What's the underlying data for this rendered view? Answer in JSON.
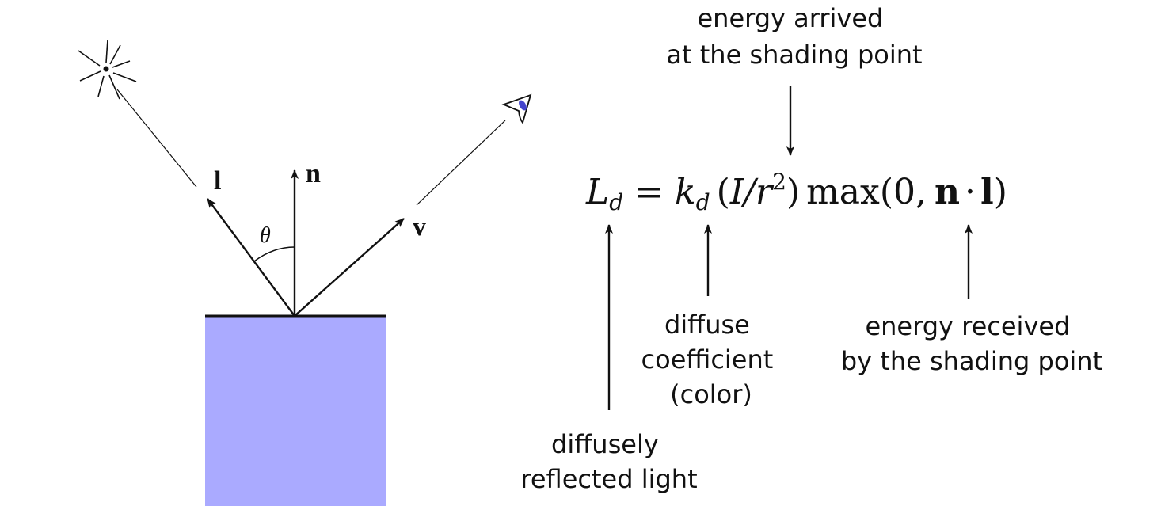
{
  "colors": {
    "surface": "#aaaaff",
    "ink": "#111111",
    "eye_accent": "#4444cc"
  },
  "icons": {
    "light": "light-source-icon",
    "eye": "eye-icon"
  },
  "vectors": {
    "light": "l",
    "normal": "n",
    "view": "v",
    "angle": "θ"
  },
  "equation": {
    "L": "L",
    "L_sub": "d",
    "equals": "=",
    "k": "k",
    "k_sub": "d",
    "open_paren": "(",
    "I_over_r": "I/r",
    "exponent": "2",
    "close_paren": ")",
    "max_fn": "max(0,",
    "n": "n",
    "dot": "·",
    "l": "l",
    "final_paren": ")"
  },
  "annotations": {
    "top": [
      "energy arrived",
      "at the shading point"
    ],
    "ld": [
      "diffusely",
      "reflected light"
    ],
    "kd": [
      "diffuse",
      "coefficient",
      "(color)"
    ],
    "nl": [
      "energy received",
      "by the shading point"
    ]
  }
}
